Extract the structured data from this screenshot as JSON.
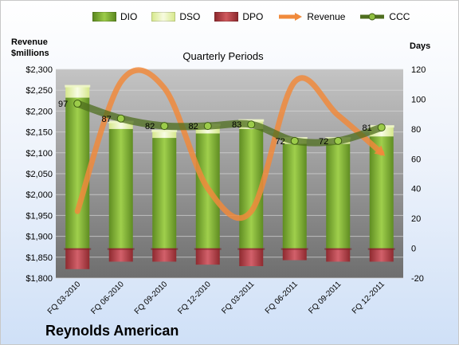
{
  "legend": {
    "dio": "DIO",
    "dso": "DSO",
    "dpo": "DPO",
    "revenue": "Revenue",
    "ccc": "CCC"
  },
  "left_axis_title": "Revenue\n$millions",
  "right_axis_title": "Days",
  "footer_title": "Reynolds American",
  "colors": {
    "dio": "#6f9e2a",
    "dso": "#e6f2b0",
    "dpo": "#b23a3f",
    "revenue": "#f08a3c",
    "ccc": "#4e6e1e"
  },
  "chart_data": {
    "type": "bar",
    "title": "Quarterly Periods",
    "categories": [
      "FQ 03-2010",
      "FQ 06-2010",
      "FQ 09-2010",
      "FQ 12-2010",
      "FQ 03-2011",
      "FQ 06-2011",
      "FQ 09-2011",
      "FQ 12-2011"
    ],
    "series": [
      {
        "name": "DIO",
        "axis": "days",
        "stack": "positive",
        "values": [
          101,
          80,
          74,
          77,
          80,
          70,
          70,
          75
        ]
      },
      {
        "name": "DSO",
        "axis": "days",
        "stack": "positive",
        "values": [
          8,
          5,
          5,
          6,
          6,
          4,
          4,
          7
        ]
      },
      {
        "name": "DPO",
        "axis": "days",
        "stack": "negative",
        "values": [
          -14,
          -9,
          -9,
          -11,
          -12,
          -8,
          -9,
          -9
        ]
      },
      {
        "name": "Revenue",
        "axis": "revenue",
        "type": "line",
        "values": [
          1960,
          2270,
          2255,
          2015,
          1960,
          2270,
          2190,
          2100
        ]
      },
      {
        "name": "CCC",
        "axis": "days",
        "type": "line",
        "values": [
          97,
          87,
          82,
          82,
          83,
          72,
          72,
          81
        ],
        "labels": [
          "97",
          "87",
          "82",
          "82",
          "83",
          "72",
          "72",
          "81"
        ]
      }
    ],
    "y_left": {
      "label": "Revenue $millions",
      "ylim": [
        1800,
        2300
      ],
      "ticks": [
        "$1,800",
        "$1,850",
        "$1,900",
        "$1,950",
        "$2,000",
        "$2,050",
        "$2,100",
        "$2,150",
        "$2,200",
        "$2,250",
        "$2,300"
      ]
    },
    "y_right": {
      "label": "Days",
      "ylim": [
        -20,
        120
      ],
      "ticks": [
        "-20",
        "0",
        "20",
        "40",
        "60",
        "80",
        "100",
        "120"
      ]
    },
    "grid": true,
    "legend_position": "top"
  }
}
